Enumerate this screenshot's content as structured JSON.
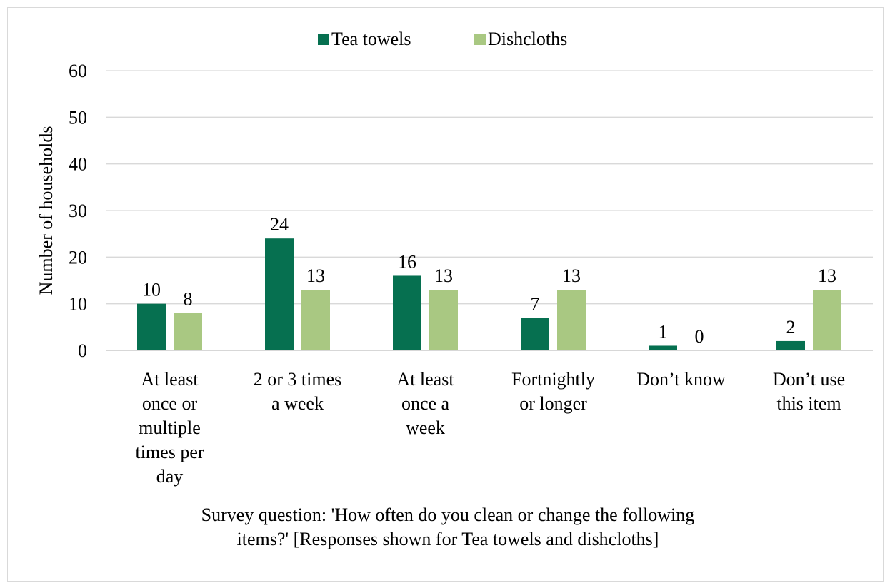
{
  "chart_data": {
    "type": "bar",
    "categories": [
      [
        "At least",
        "once or",
        "multiple",
        "times per",
        "day"
      ],
      [
        "2 or 3 times",
        "a week"
      ],
      [
        "At least",
        "once a",
        "week"
      ],
      [
        "Fortnightly",
        "or longer"
      ],
      [
        "Don’t know"
      ],
      [
        "Don’t use",
        "this item"
      ]
    ],
    "series": [
      {
        "name": "Tea towels",
        "color": "#067050",
        "values": [
          10,
          24,
          16,
          7,
          1,
          2
        ]
      },
      {
        "name": "Dishcloths",
        "color": "#a9c882",
        "values": [
          8,
          13,
          13,
          13,
          0,
          13
        ]
      }
    ],
    "ylabel": "Number of households",
    "ylim": [
      0,
      60
    ],
    "yticks": [
      0,
      10,
      20,
      30,
      40,
      50,
      60
    ],
    "grid": true,
    "legend_position": "top-center",
    "caption": [
      "Survey question: 'How often do you clean or change the following",
      "items?' [Responses shown for Tea towels and dishcloths]"
    ]
  }
}
